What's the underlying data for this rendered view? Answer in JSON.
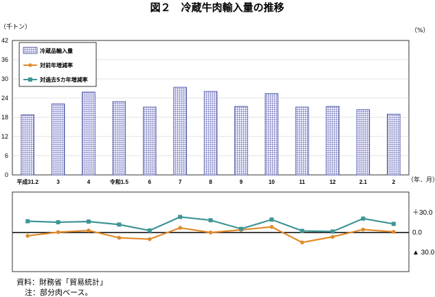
{
  "chart_data": [
    {
      "type": "bar",
      "title": "図２　冷蔵牛肉輸入量の推移",
      "ylabel": "（千トン）",
      "xlabel": "（年．月）",
      "categories": [
        "平成31.2",
        "3",
        "4",
        "令和1.5",
        "6",
        "7",
        "8",
        "9",
        "10",
        "11",
        "12",
        "2.1",
        "2"
      ],
      "ylim": [
        0,
        42
      ],
      "yticks": [
        0,
        6,
        12,
        18,
        24,
        30,
        36,
        42
      ],
      "series": [
        {
          "name": "冷蔵品輸入量",
          "values": [
            18.8,
            22.2,
            25.9,
            22.9,
            21.2,
            27.4,
            26.1,
            21.4,
            25.4,
            21.2,
            21.4,
            20.4,
            19.0
          ]
        }
      ],
      "legend_position": "top-left",
      "grid": true
    },
    {
      "type": "line",
      "ylabel": "（%）",
      "categories": [
        "平成31.2",
        "3",
        "4",
        "令和1.5",
        "6",
        "7",
        "8",
        "9",
        "10",
        "11",
        "12",
        "2.1",
        "2"
      ],
      "ylim": [
        -60,
        60
      ],
      "yticks": [
        30,
        0,
        -30
      ],
      "ytick_labels": [
        "＋30.0",
        "0.0",
        "▲ 30.0"
      ],
      "series": [
        {
          "name": "対前年増減率",
          "color": "#e08a2a",
          "values": [
            -6.0,
            -0.5,
            2.0,
            -9.0,
            -11.0,
            6.0,
            -1.0,
            3.0,
            7.5,
            -16.0,
            -7.5,
            3.5,
            0.0
          ]
        },
        {
          "name": "対過去5カ年増減率",
          "color": "#3f9595",
          "values": [
            16.0,
            14.5,
            15.5,
            11.0,
            2.0,
            22.5,
            17.5,
            4.5,
            18.5,
            1.5,
            0.5,
            20.0,
            12.0
          ]
        }
      ],
      "grid": false
    }
  ],
  "notes": [
    "資料：財務省「貿易統計」",
    "注：部分肉ベース。"
  ]
}
